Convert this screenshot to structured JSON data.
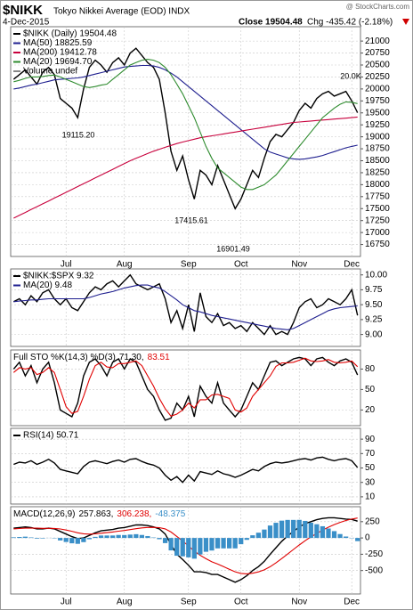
{
  "header": {
    "symbol": "$NIKK",
    "name": "Tokyo Nikkei Average (EOD) INDX",
    "watermark": "@ StockCharts.com",
    "date": "4-Dec-2015",
    "close": "Close 19504.48",
    "change": "Chg -435.42 (-2.18%)"
  },
  "chart_data": [
    {
      "type": "line",
      "legend": "stacked",
      "categories": [
        null,
        null,
        null,
        null,
        null,
        null,
        null,
        null,
        null,
        "Jul",
        null,
        null,
        null,
        null,
        null,
        null,
        null,
        null,
        null,
        "Aug",
        null,
        null,
        null,
        null,
        null,
        null,
        null,
        null,
        null,
        null,
        "Sep",
        null,
        null,
        null,
        null,
        null,
        null,
        null,
        null,
        "Oct",
        null,
        null,
        null,
        null,
        null,
        null,
        null,
        null,
        null,
        "Nov",
        null,
        null,
        null,
        null,
        null,
        null,
        null,
        null,
        "Dec",
        null
      ],
      "ylim": [
        16500,
        21300
      ],
      "yticks": [
        16750,
        17000,
        17250,
        17500,
        17750,
        18000,
        18250,
        18500,
        18750,
        19000,
        19250,
        19500,
        19750,
        20000,
        20250,
        20500,
        20750,
        21000
      ],
      "series": [
        {
          "name": "$NIKK (Daily) 19504.48",
          "color": "#000000",
          "values": [
            20200,
            20300,
            20400,
            20250,
            20100,
            20350,
            20450,
            20300,
            19800,
            19700,
            19600,
            19400,
            20000,
            20450,
            20600,
            20500,
            20350,
            20550,
            20650,
            20500,
            20750,
            20850,
            20700,
            20550,
            20450,
            20200,
            19500,
            18700,
            18300,
            18600,
            18100,
            17700,
            18300,
            18200,
            18000,
            18400,
            18100,
            17800,
            17500,
            17700,
            18000,
            18300,
            18150,
            18550,
            18900,
            19050,
            19000,
            19150,
            19300,
            19550,
            19700,
            19600,
            19800,
            19900,
            19950,
            19850,
            19900,
            19950,
            19750,
            19504.48
          ]
        },
        {
          "name": "MA(50) 18825.59",
          "color": "#1f1f8f",
          "values": [
            20000,
            20020,
            20050,
            20080,
            20100,
            20130,
            20160,
            20190,
            20200,
            20210,
            20220,
            20230,
            20250,
            20280,
            20310,
            20340,
            20370,
            20400,
            20430,
            20460,
            20470,
            20480,
            20490,
            20490,
            20480,
            20450,
            20400,
            20330,
            20250,
            20150,
            20050,
            19950,
            19850,
            19750,
            19650,
            19550,
            19450,
            19350,
            19250,
            19150,
            19050,
            18950,
            18850,
            18750,
            18680,
            18640,
            18600,
            18560,
            18540,
            18530,
            18540,
            18560,
            18580,
            18610,
            18650,
            18690,
            18730,
            18770,
            18800,
            18825.59
          ]
        },
        {
          "name": "MA(200) 19412.78",
          "color": "#c8003c",
          "values": [
            17300,
            17360,
            17420,
            17480,
            17540,
            17600,
            17660,
            17720,
            17780,
            17840,
            17900,
            17960,
            18020,
            18080,
            18140,
            18200,
            18260,
            18320,
            18380,
            18440,
            18500,
            18550,
            18600,
            18650,
            18700,
            18740,
            18780,
            18820,
            18860,
            18890,
            18920,
            18950,
            18980,
            19000,
            19020,
            19040,
            19060,
            19080,
            19100,
            19120,
            19140,
            19160,
            19180,
            19200,
            19220,
            19240,
            19260,
            19280,
            19300,
            19310,
            19320,
            19330,
            19340,
            19350,
            19360,
            19370,
            19380,
            19390,
            19400,
            19412.78
          ]
        },
        {
          "name": "MA(20) 19694.70",
          "color": "#2e8b2e",
          "values": [
            20150,
            20180,
            20220,
            20250,
            20250,
            20260,
            20280,
            20290,
            20250,
            20200,
            20150,
            20100,
            20050,
            20030,
            20050,
            20080,
            20100,
            20200,
            20300,
            20400,
            20500,
            20550,
            20600,
            20620,
            20600,
            20550,
            20450,
            20300,
            20100,
            19900,
            19650,
            19400,
            19100,
            18800,
            18550,
            18350,
            18250,
            18150,
            18050,
            17950,
            17900,
            17900,
            17950,
            18000,
            18100,
            18200,
            18350,
            18500,
            18650,
            18800,
            18950,
            19100,
            19250,
            19400,
            19500,
            19600,
            19680,
            19730,
            19720,
            19694.7
          ]
        }
      ],
      "extra_legend": "Volume undef",
      "annotations": [
        "19115.20",
        "17415.61",
        "16901.49",
        "20.0K"
      ]
    },
    {
      "type": "line",
      "legend": "stacked",
      "ylim": [
        8.8,
        10.1
      ],
      "yticks": [
        {
          "value": 9,
          "label": "9.00"
        },
        9.25,
        {
          "value": 9.5,
          "label": "9.50"
        },
        9.75,
        {
          "value": 10,
          "label": "10.00"
        }
      ],
      "series": [
        {
          "name": "$NIKK:$SPX 9.32",
          "color": "#000000",
          "values": [
            9.55,
            9.6,
            9.5,
            9.65,
            9.55,
            9.7,
            9.75,
            9.6,
            9.5,
            9.6,
            9.45,
            9.4,
            9.55,
            9.7,
            9.8,
            9.75,
            9.85,
            9.9,
            9.8,
            9.9,
            10.0,
            9.85,
            9.8,
            9.75,
            9.8,
            9.85,
            9.6,
            9.2,
            9.4,
            9.1,
            9.5,
            9.05,
            9.7,
            9.3,
            9.2,
            9.35,
            9.15,
            9.2,
            9.1,
            9.15,
            9.05,
            9.2,
            9.1,
            9.0,
            9.15,
            9.0,
            9.05,
            9.0,
            9.2,
            9.45,
            9.55,
            9.6,
            9.45,
            9.5,
            9.6,
            9.55,
            9.5,
            9.6,
            9.75,
            9.32
          ]
        },
        {
          "name": "MA(20) 9.48",
          "color": "#1f1f8f",
          "values": [
            9.55,
            9.56,
            9.57,
            9.58,
            9.58,
            9.59,
            9.6,
            9.6,
            9.6,
            9.6,
            9.6,
            9.6,
            9.6,
            9.62,
            9.65,
            9.68,
            9.7,
            9.72,
            9.75,
            9.78,
            9.8,
            9.82,
            9.83,
            9.83,
            9.8,
            9.78,
            9.72,
            9.65,
            9.58,
            9.5,
            9.45,
            9.4,
            9.38,
            9.35,
            9.32,
            9.3,
            9.28,
            9.26,
            9.24,
            9.22,
            9.2,
            9.18,
            9.16,
            9.14,
            9.12,
            9.1,
            9.09,
            9.08,
            9.1,
            9.15,
            9.2,
            9.25,
            9.3,
            9.35,
            9.4,
            9.43,
            9.45,
            9.46,
            9.47,
            9.48
          ]
        }
      ]
    },
    {
      "type": "line",
      "legend": "inline",
      "label": "Full STO %K(14,3) %D(3)",
      "ylim": [
        -3,
        108
      ],
      "yticks": [
        20,
        50,
        80
      ],
      "series": [
        {
          "name": "71.30,",
          "color": "#000000",
          "values": [
            80,
            90,
            70,
            85,
            60,
            80,
            90,
            60,
            20,
            15,
            10,
            30,
            70,
            90,
            95,
            85,
            70,
            90,
            95,
            80,
            95,
            90,
            70,
            50,
            40,
            20,
            5,
            8,
            30,
            20,
            40,
            10,
            55,
            40,
            30,
            60,
            30,
            20,
            10,
            20,
            40,
            60,
            50,
            70,
            90,
            92,
            85,
            90,
            95,
            97,
            95,
            85,
            95,
            97,
            90,
            85,
            92,
            95,
            90,
            71.3
          ]
        },
        {
          "name": "83.51",
          "color": "#e00000",
          "values": [
            75,
            82,
            80,
            82,
            72,
            75,
            82,
            75,
            50,
            25,
            15,
            18,
            40,
            65,
            85,
            90,
            83,
            82,
            88,
            88,
            90,
            92,
            85,
            70,
            55,
            37,
            22,
            11,
            14,
            20,
            30,
            23,
            35,
            35,
            42,
            43,
            40,
            37,
            20,
            17,
            23,
            40,
            50,
            60,
            70,
            84,
            89,
            89,
            90,
            93,
            96,
            92,
            91,
            92,
            94,
            90,
            89,
            90,
            92,
            83.51
          ]
        }
      ]
    },
    {
      "type": "line",
      "legend": "stacked",
      "ylim": [
        0,
        105
      ],
      "yticks": [
        10,
        30,
        50,
        70,
        90
      ],
      "series": [
        {
          "name": "RSI(14) 50.71",
          "color": "#000000",
          "values": [
            55,
            58,
            57,
            60,
            55,
            58,
            62,
            57,
            48,
            46,
            44,
            42,
            52,
            58,
            60,
            58,
            56,
            59,
            61,
            58,
            62,
            63,
            59,
            56,
            54,
            50,
            40,
            33,
            38,
            30,
            40,
            32,
            45,
            43,
            41,
            46,
            42,
            40,
            37,
            40,
            44,
            48,
            46,
            52,
            56,
            58,
            57,
            58,
            60,
            62,
            63,
            61,
            64,
            65,
            62,
            60,
            62,
            63,
            60,
            50.71
          ]
        }
      ]
    },
    {
      "type": "line",
      "legend": "inline",
      "label": "MACD(12,26,9)",
      "ylim": [
        -860,
        480
      ],
      "yticks": [
        -500,
        -250,
        0,
        250
      ],
      "categories": [
        null,
        null,
        null,
        null,
        null,
        null,
        null,
        null,
        null,
        "Jul",
        null,
        null,
        null,
        null,
        null,
        null,
        null,
        null,
        null,
        "Aug",
        null,
        null,
        null,
        null,
        null,
        null,
        null,
        null,
        null,
        null,
        "Sep",
        null,
        null,
        null,
        null,
        null,
        null,
        null,
        null,
        "Oct",
        null,
        null,
        null,
        null,
        null,
        null,
        null,
        null,
        null,
        "Nov",
        null,
        null,
        null,
        null,
        null,
        null,
        null,
        null,
        "Dec",
        null
      ],
      "series": [
        {
          "name": "257.863,",
          "color": "#000000",
          "values": [
            150,
            160,
            170,
            160,
            140,
            140,
            150,
            140,
            100,
            60,
            20,
            -10,
            0,
            40,
            80,
            110,
            120,
            130,
            150,
            160,
            180,
            200,
            200,
            190,
            170,
            140,
            60,
            -100,
            -250,
            -330,
            -420,
            -520,
            -520,
            -530,
            -560,
            -560,
            -600,
            -640,
            -680,
            -640,
            -580,
            -500,
            -440,
            -360,
            -250,
            -150,
            -50,
            30,
            100,
            170,
            220,
            250,
            280,
            300,
            310,
            310,
            300,
            290,
            285,
            257.863
          ]
        },
        {
          "name": "306.238,",
          "color": "#e00000",
          "values": [
            140,
            145,
            150,
            152,
            150,
            148,
            148,
            146,
            138,
            122,
            102,
            80,
            64,
            59,
            63,
            72,
            82,
            92,
            104,
            115,
            128,
            142,
            154,
            161,
            163,
            159,
            139,
            91,
            23,
            -48,
            -122,
            -202,
            -266,
            -318,
            -367,
            -400,
            -440,
            -480,
            -520,
            -544,
            -551,
            -541,
            -521,
            -489,
            -441,
            -383,
            -316,
            -247,
            -177,
            -108,
            -42,
            16,
            69,
            120,
            165,
            205,
            240,
            268,
            290,
            306.238
          ]
        },
        {
          "name": "-48.375",
          "color": "#3a8fc8",
          "type": "bar",
          "values": [
            10,
            15,
            20,
            8,
            -10,
            -8,
            2,
            -6,
            -38,
            -62,
            -82,
            -90,
            -64,
            -19,
            17,
            38,
            38,
            38,
            46,
            45,
            52,
            58,
            46,
            29,
            7,
            -19,
            -79,
            -191,
            -273,
            -282,
            -298,
            -318,
            -254,
            -212,
            -193,
            -160,
            -160,
            -160,
            -160,
            -96,
            -29,
            41,
            81,
            129,
            191,
            233,
            266,
            277,
            277,
            278,
            262,
            234,
            211,
            180,
            145,
            105,
            60,
            22,
            -5,
            -48.375
          ]
        }
      ]
    }
  ]
}
